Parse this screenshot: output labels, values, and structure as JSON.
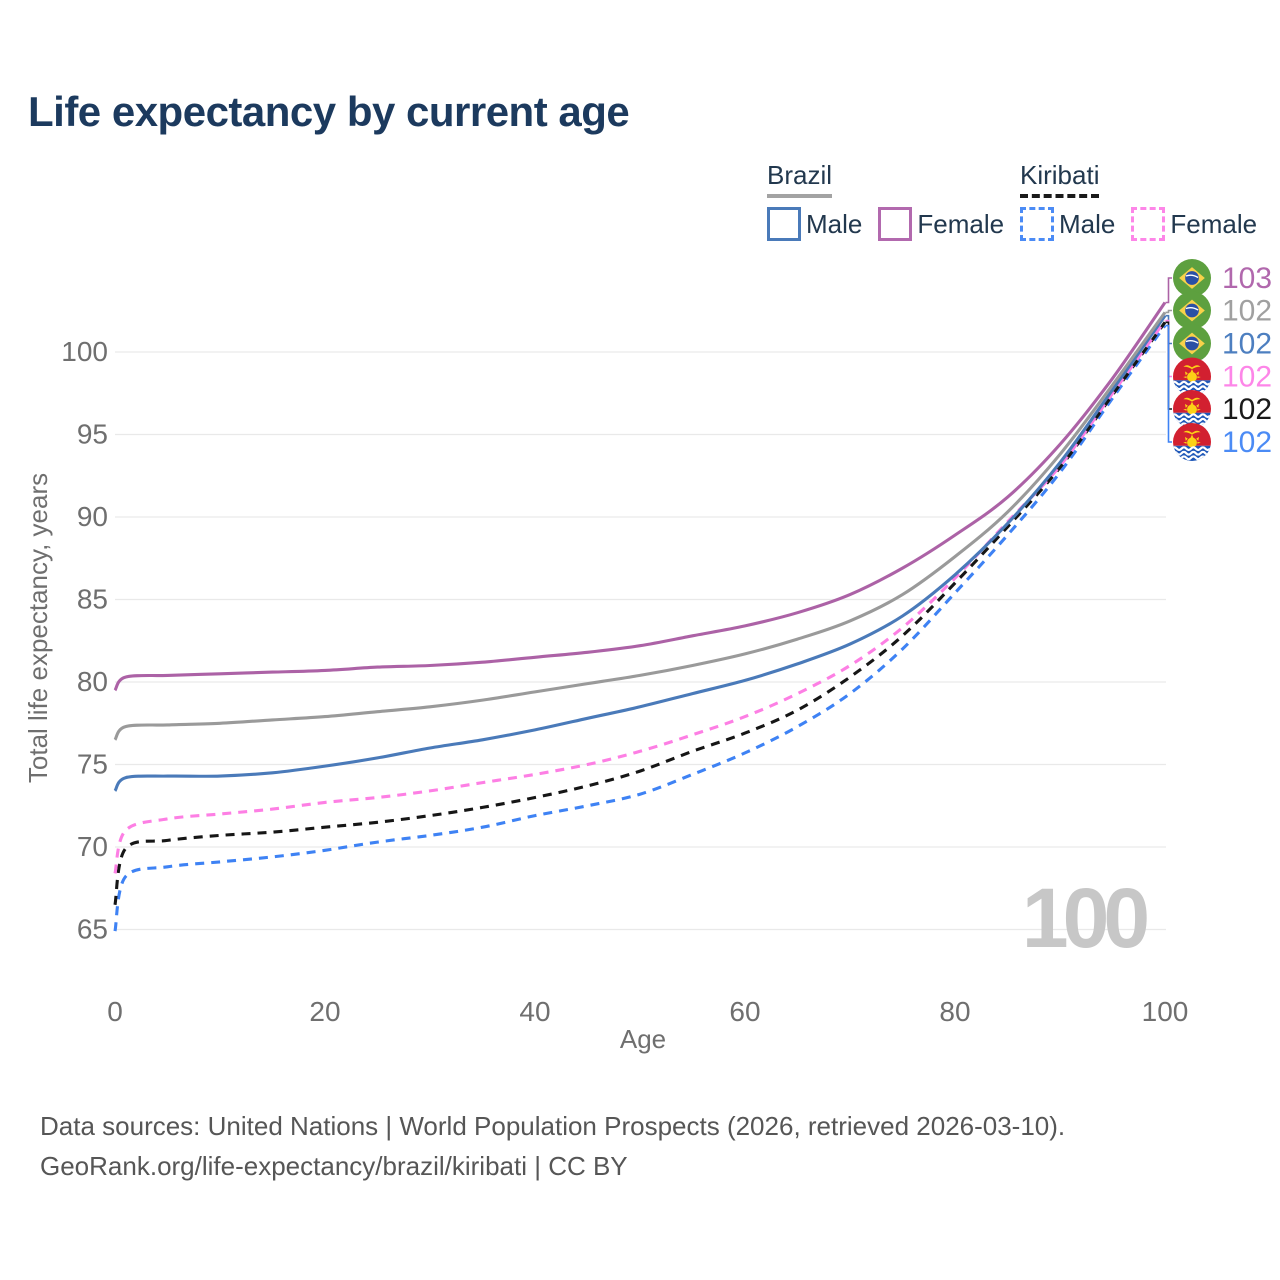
{
  "header": {
    "title": "Life expectancy by current age"
  },
  "legend": {
    "groups": [
      {
        "name": "Brazil",
        "line_style": "solid",
        "underline_color": "#a3a3a3",
        "items": [
          {
            "label": "Male",
            "color": "#4a7ab9"
          },
          {
            "label": "Female",
            "color": "#b269ae"
          }
        ]
      },
      {
        "name": "Kiribati",
        "line_style": "dashed",
        "underline_color": "#1a1a1a",
        "items": [
          {
            "label": "Male",
            "color": "#4b8bf5"
          },
          {
            "label": "Female",
            "color": "#fd86e8"
          }
        ]
      }
    ]
  },
  "chart_data": {
    "type": "line",
    "title": "Life expectancy by current age",
    "xlabel": "Age",
    "ylabel": "Total life expectancy, years",
    "watermark": "100",
    "xlim": [
      0,
      100
    ],
    "ylim": [
      63,
      104
    ],
    "x_ticks": [
      0,
      20,
      40,
      60,
      80,
      100
    ],
    "y_ticks": [
      65,
      70,
      75,
      80,
      85,
      90,
      95,
      100
    ],
    "grid": "horizontal",
    "legend_position": "top-right",
    "ages": [
      0,
      1,
      5,
      10,
      15,
      20,
      25,
      30,
      35,
      40,
      45,
      50,
      55,
      60,
      65,
      70,
      75,
      80,
      85,
      90,
      95,
      100
    ],
    "series": [
      {
        "id": "brazil-female",
        "country": "Brazil",
        "group": "Female",
        "line": "solid",
        "color": "#ac62a6",
        "label_color": "#b168ad",
        "flag": "brazil",
        "end_label": "103",
        "values": [
          79.5,
          80.3,
          80.4,
          80.5,
          80.6,
          80.7,
          80.9,
          81.0,
          81.2,
          81.5,
          81.8,
          82.2,
          82.8,
          83.4,
          84.2,
          85.3,
          86.9,
          88.9,
          91.2,
          94.4,
          98.4,
          103.0
        ]
      },
      {
        "id": "brazil-total",
        "country": "Brazil",
        "group": "All",
        "line": "solid",
        "color": "#9a9a9a",
        "label_color": "#a0a0a0",
        "flag": "brazil",
        "end_label": "102",
        "values": [
          76.5,
          77.3,
          77.4,
          77.5,
          77.7,
          77.9,
          78.2,
          78.5,
          78.9,
          79.4,
          79.9,
          80.4,
          81.0,
          81.7,
          82.6,
          83.7,
          85.3,
          87.6,
          90.3,
          93.8,
          98.0,
          102.4
        ]
      },
      {
        "id": "brazil-male",
        "country": "Brazil",
        "group": "Male",
        "line": "solid",
        "color": "#4a7ab9",
        "label_color": "#4d7fc0",
        "flag": "brazil",
        "end_label": "102",
        "values": [
          73.4,
          74.2,
          74.3,
          74.3,
          74.5,
          74.9,
          75.4,
          76.0,
          76.5,
          77.1,
          77.8,
          78.5,
          79.3,
          80.1,
          81.1,
          82.3,
          84.0,
          86.5,
          89.6,
          93.3,
          97.7,
          102.2
        ]
      },
      {
        "id": "kiribati-female",
        "country": "Kiribati",
        "group": "Female",
        "line": "dashed",
        "color": "#fd7fe4",
        "label_color": "#fd86e8",
        "flag": "kiribati",
        "end_label": "102",
        "values": [
          68.4,
          71.0,
          71.7,
          72.0,
          72.3,
          72.7,
          73.0,
          73.4,
          73.9,
          74.4,
          75.0,
          75.8,
          76.8,
          77.9,
          79.3,
          81.0,
          83.3,
          86.3,
          89.7,
          93.1,
          97.5,
          101.9
        ]
      },
      {
        "id": "kiribati-total",
        "country": "Kiribati",
        "group": "All",
        "line": "dashed",
        "color": "#161616",
        "label_color": "#1a1a1a",
        "flag": "kiribati",
        "end_label": "102",
        "values": [
          66.5,
          69.9,
          70.4,
          70.7,
          70.9,
          71.2,
          71.5,
          71.9,
          72.4,
          73.0,
          73.7,
          74.6,
          75.8,
          76.9,
          78.3,
          80.3,
          82.8,
          86.0,
          89.4,
          93.0,
          97.4,
          101.8
        ]
      },
      {
        "id": "kiribati-male",
        "country": "Kiribati",
        "group": "Male",
        "line": "dashed",
        "color": "#3e82f4",
        "label_color": "#4b8bf5",
        "flag": "kiribati",
        "end_label": "102",
        "values": [
          64.9,
          68.2,
          68.8,
          69.1,
          69.4,
          69.8,
          70.3,
          70.7,
          71.2,
          71.9,
          72.5,
          73.2,
          74.4,
          75.7,
          77.3,
          79.3,
          82.0,
          85.4,
          88.9,
          92.7,
          97.2,
          101.6
        ]
      }
    ]
  },
  "footer": {
    "line1": "Data sources: United Nations | World Population Prospects (2026, retrieved 2026-03-10).",
    "line2": "GeoRank.org/life-expectancy/brazil/kiribati | CC BY"
  }
}
